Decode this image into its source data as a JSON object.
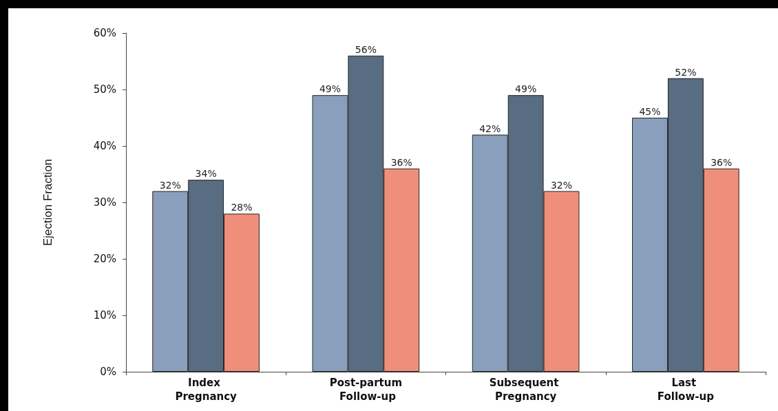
{
  "chart_data": {
    "type": "bar",
    "ylabel": "Ejection Fraction",
    "categories": [
      "Index Pregnancy",
      "Post-partum Follow-up",
      "Subsequent Pregnancy",
      "Last Follow-up"
    ],
    "series": [
      {
        "color": "#8a9fbb",
        "values": [
          32,
          49,
          42,
          45
        ],
        "value_labels": [
          "32%",
          "49%",
          "42%",
          "45%"
        ]
      },
      {
        "color": "#596d82",
        "values": [
          34,
          56,
          49,
          52
        ],
        "value_labels": [
          "34%",
          "56%",
          "49%",
          "52%"
        ]
      },
      {
        "color": "#ef8f7b",
        "values": [
          28,
          36,
          32,
          36
        ],
        "value_labels": [
          "28%",
          "36%",
          "32%",
          "36%"
        ]
      }
    ],
    "ylim": [
      0,
      60
    ],
    "yticks": [
      {
        "value": 0,
        "label": "0%"
      },
      {
        "value": 10,
        "label": "10%"
      },
      {
        "value": 20,
        "label": "20%"
      },
      {
        "value": 30,
        "label": "30%"
      },
      {
        "value": 40,
        "label": "40%"
      },
      {
        "value": 50,
        "label": "50%"
      },
      {
        "value": 60,
        "label": "60%"
      }
    ],
    "grid": false
  }
}
